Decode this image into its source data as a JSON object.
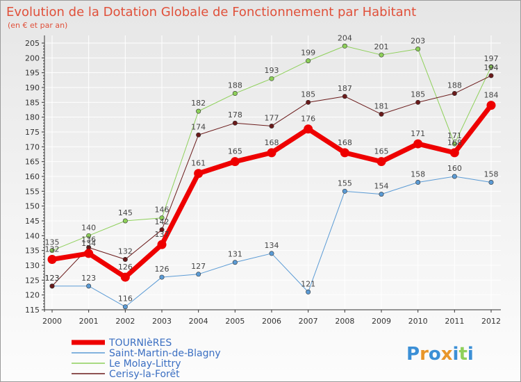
{
  "chart_data": {
    "type": "line",
    "title": "Evolution de la Dotation Globale de Fonctionnement par Habitant",
    "subtitle": "(en € et par an)",
    "categories": [
      "2000",
      "2001",
      "2002",
      "2003",
      "2004",
      "2005",
      "2006",
      "2007",
      "2008",
      "2009",
      "2010",
      "2011",
      "2012"
    ],
    "ylim": [
      115,
      205
    ],
    "yticks": [
      115,
      120,
      125,
      130,
      135,
      140,
      145,
      150,
      155,
      160,
      165,
      170,
      175,
      180,
      185,
      190,
      195,
      200,
      205
    ],
    "grid": true,
    "legend_position": "bottom-left",
    "series": [
      {
        "name": "Saint-Martin-de-Blagny",
        "color": "#5b9bd5",
        "width": 1,
        "values": [
          123,
          123,
          116,
          126,
          127,
          131,
          134,
          121,
          155,
          154,
          158,
          160,
          158
        ]
      },
      {
        "name": "Le Molay-Littry",
        "color": "#8ed05a",
        "width": 1,
        "values": [
          135,
          140,
          145,
          146,
          182,
          188,
          193,
          199,
          204,
          201,
          203,
          171,
          197
        ]
      },
      {
        "name": "Cerisy-la-Forêt",
        "color": "#6a1a1a",
        "width": 1,
        "values": [
          123,
          136,
          132,
          142,
          174,
          178,
          177,
          185,
          187,
          181,
          185,
          188,
          194
        ]
      },
      {
        "name": "TOURNIèRES",
        "color": "#ee0000",
        "width": 7,
        "values": [
          132,
          134,
          126,
          137,
          161,
          165,
          168,
          176,
          168,
          165,
          171,
          168,
          184
        ]
      }
    ],
    "legend_order": [
      "TOURNIèRES",
      "Saint-Martin-de-Blagny",
      "Le Molay-Littry",
      "Cerisy-la-Forêt"
    ]
  },
  "logo": {
    "text": "Proxiti",
    "letter_colors": [
      "#3b8fd6",
      "#e8962a",
      "#3b8fd6",
      "#e8962a",
      "#3b8fd6",
      "#8ed05a",
      "#3b8fd6"
    ]
  }
}
